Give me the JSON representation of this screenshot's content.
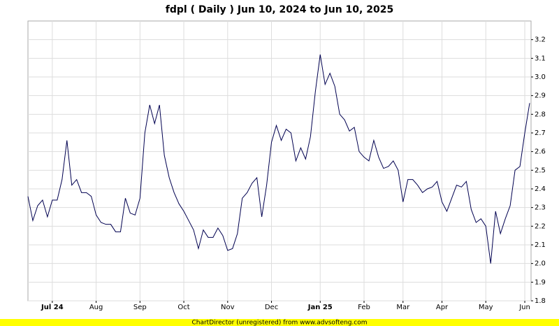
{
  "chart_data": {
    "type": "line",
    "title": "fdpl ( Daily ) Jun 10, 2024 to Jun 10, 2025",
    "footer": "ChartDirector (unregistered) from www.advsofteng.com",
    "categories": [
      null,
      null,
      null,
      null,
      null,
      "Jul 24",
      null,
      null,
      null,
      null,
      null,
      null,
      null,
      null,
      "Aug",
      null,
      null,
      null,
      null,
      null,
      null,
      null,
      null,
      "Sep",
      null,
      null,
      null,
      null,
      null,
      null,
      null,
      null,
      "Oct",
      null,
      null,
      null,
      null,
      null,
      null,
      null,
      null,
      "Nov",
      null,
      null,
      null,
      null,
      null,
      null,
      null,
      null,
      "Dec",
      null,
      null,
      null,
      null,
      null,
      null,
      null,
      null,
      null,
      "Jan 25",
      null,
      null,
      null,
      null,
      null,
      null,
      null,
      null,
      "Feb",
      null,
      null,
      null,
      null,
      null,
      null,
      null,
      "Mar",
      null,
      null,
      null,
      null,
      null,
      null,
      null,
      "Apr",
      null,
      null,
      null,
      null,
      null,
      null,
      null,
      null,
      "May",
      null,
      null,
      null,
      null,
      null,
      null,
      null,
      "Jun",
      null
    ],
    "values": [
      2.36,
      2.23,
      2.31,
      2.34,
      2.25,
      2.34,
      2.34,
      2.45,
      2.66,
      2.42,
      2.45,
      2.38,
      2.38,
      2.36,
      2.26,
      2.22,
      2.21,
      2.21,
      2.17,
      2.17,
      2.35,
      2.27,
      2.26,
      2.35,
      2.7,
      2.85,
      2.75,
      2.85,
      2.58,
      2.46,
      2.38,
      2.32,
      2.28,
      2.23,
      2.18,
      2.08,
      2.18,
      2.14,
      2.14,
      2.19,
      2.15,
      2.07,
      2.08,
      2.16,
      2.35,
      2.38,
      2.43,
      2.46,
      2.25,
      2.42,
      2.65,
      2.74,
      2.66,
      2.72,
      2.7,
      2.55,
      2.62,
      2.56,
      2.68,
      2.92,
      3.12,
      2.96,
      3.02,
      2.95,
      2.8,
      2.77,
      2.71,
      2.73,
      2.6,
      2.57,
      2.55,
      2.66,
      2.57,
      2.51,
      2.52,
      2.55,
      2.5,
      2.33,
      2.45,
      2.45,
      2.42,
      2.38,
      2.4,
      2.41,
      2.44,
      2.33,
      2.28,
      2.35,
      2.42,
      2.41,
      2.44,
      2.29,
      2.22,
      2.24,
      2.2,
      2.0,
      2.28,
      2.16,
      2.24,
      2.31,
      2.5,
      2.52,
      2.7,
      2.86
    ],
    "color": "#000050",
    "ylim": [
      1.8,
      3.3
    ],
    "yticks": [
      1.8,
      1.9,
      {
        "value": 2,
        "label": "2.0"
      },
      2.1,
      2.2,
      2.3,
      2.4,
      2.5,
      2.6,
      2.7,
      2.8,
      2.9,
      {
        "value": 3,
        "label": "3.0"
      },
      3.1,
      3.2
    ],
    "grid": true
  }
}
